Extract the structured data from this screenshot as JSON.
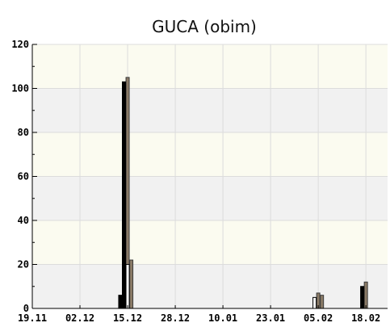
{
  "chart_data": {
    "type": "bar",
    "title": "GUCA (obim)",
    "xlabel": "",
    "ylabel": "",
    "ylim": [
      0,
      120
    ],
    "yticks": [
      "0",
      "20",
      "40",
      "60",
      "80",
      "100",
      "120"
    ],
    "xticks": [
      "19.11",
      "02.12",
      "15.12",
      "28.12",
      "10.01",
      "23.01",
      "05.02",
      "18.02"
    ],
    "grid": true,
    "legend": "none",
    "colors": {
      "plot_background_light": "#fbfbf0",
      "plot_background_band": "#f1f1f1",
      "grid": "#dcdcdc",
      "series_a_fill": "#000000",
      "series_b_fill": "#8a7a66",
      "series_b_edge": "#3a3a3a",
      "series_c_fill": "#ffffff"
    },
    "bars": [
      {
        "date": "13.12",
        "series": "a",
        "value": 6
      },
      {
        "date": "14.12",
        "series": "a",
        "value": 103
      },
      {
        "date": "15.12",
        "series": "b",
        "value": 105
      },
      {
        "date": "15.12",
        "series": "c",
        "value": 20
      },
      {
        "date": "16.12",
        "series": "b",
        "value": 22
      },
      {
        "date": "04.02",
        "series": "c",
        "value": 5
      },
      {
        "date": "05.02",
        "series": "b",
        "value": 7
      },
      {
        "date": "06.02",
        "series": "b",
        "value": 6
      },
      {
        "date": "17.02",
        "series": "a",
        "value": 10
      },
      {
        "date": "18.02",
        "series": "b",
        "value": 12
      }
    ]
  }
}
